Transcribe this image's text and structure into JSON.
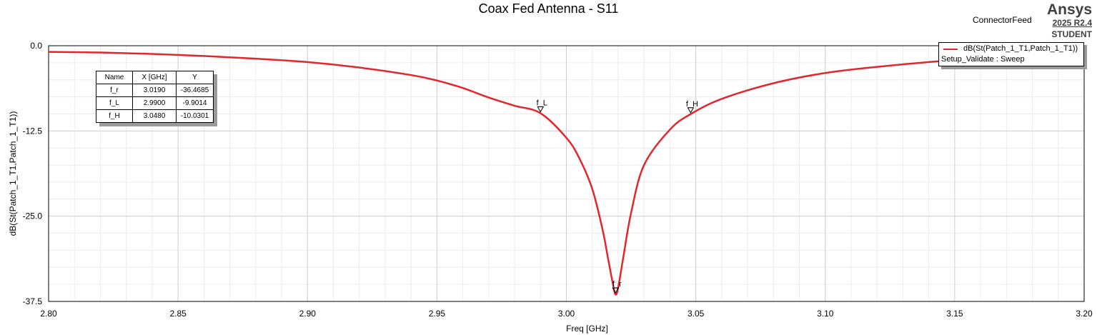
{
  "header": {
    "brand_name": "Ansys",
    "brand_version": "2025 R2.4",
    "brand_license": "STUDENT",
    "feed_label": "ConnectorFeed"
  },
  "legend": {
    "trace_name": "dB(St(Patch_1_T1,Patch_1_T1))",
    "setup": "Setup_Validate : Sweep"
  },
  "marker_table": {
    "headers": [
      "Name",
      "X [GHz]",
      "Y"
    ],
    "rows": [
      [
        "f_r",
        "3.0190",
        "-36.4685"
      ],
      [
        "f_L",
        "2.9900",
        "-9.9014"
      ],
      [
        "f_H",
        "3.0480",
        "-10.0301"
      ]
    ]
  },
  "chart_data": {
    "type": "line",
    "title": "Coax Fed Antenna - S11",
    "xlabel": "Freq [GHz]",
    "ylabel": "dB(St(Patch_1_T1,Patch_1_T1))",
    "xlim": [
      2.8,
      3.2
    ],
    "ylim": [
      -37.5,
      0.0
    ],
    "x_ticks": [
      "2.80",
      "2.85",
      "2.90",
      "2.95",
      "3.00",
      "3.05",
      "3.10",
      "3.15",
      "3.20"
    ],
    "y_ticks": [
      "0.0",
      "-12.5",
      "-25.0",
      "-37.5"
    ],
    "grid": true,
    "legend_position": "top-right",
    "series_color": "#e3262d",
    "series": [
      {
        "name": "dB(St(Patch_1_T1,Patch_1_T1))",
        "x": [
          2.8,
          2.82,
          2.84,
          2.86,
          2.88,
          2.9,
          2.92,
          2.94,
          2.95,
          2.96,
          2.97,
          2.98,
          2.99,
          3.0,
          3.005,
          3.01,
          3.014,
          3.016,
          3.018,
          3.019,
          3.02,
          3.022,
          3.025,
          3.03,
          3.04,
          3.048,
          3.06,
          3.08,
          3.1,
          3.12,
          3.15,
          3.18,
          3.2
        ],
        "y": [
          -0.9,
          -1.0,
          -1.2,
          -1.5,
          -1.9,
          -2.4,
          -3.2,
          -4.3,
          -5.1,
          -6.2,
          -7.6,
          -8.8,
          -9.9,
          -13.5,
          -16.5,
          -21.0,
          -27.0,
          -31.0,
          -35.0,
          -36.47,
          -35.5,
          -31.0,
          -24.5,
          -17.5,
          -12.3,
          -10.03,
          -7.8,
          -5.5,
          -4.0,
          -3.1,
          -2.1,
          -1.4,
          -1.1
        ]
      }
    ],
    "markers": [
      {
        "name": "f_r",
        "x": 3.019,
        "y": -36.4685
      },
      {
        "name": "f_L",
        "x": 2.99,
        "y": -9.9014
      },
      {
        "name": "f_H",
        "x": 3.048,
        "y": -10.0301
      }
    ]
  }
}
